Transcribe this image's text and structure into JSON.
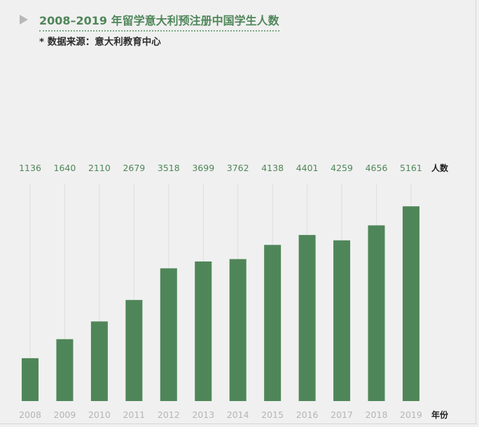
{
  "header": {
    "play_icon": "play-triangle-icon",
    "title": "2008–2019 年留学意大利预注册中国学生人数",
    "source": "* 数据来源：意大利教育中心"
  },
  "colors": {
    "bar": "#4f8659",
    "value_label": "#4f8659",
    "year_label": "#b5b5b5",
    "guide_line": "#dedede",
    "axis_title": "#1e1e1e",
    "background": "#f0f0f0"
  },
  "chart_data": {
    "type": "bar",
    "categories": [
      "2008",
      "2009",
      "2010",
      "2011",
      "2012",
      "2013",
      "2014",
      "2015",
      "2016",
      "2017",
      "2018",
      "2019"
    ],
    "values": [
      1136,
      1640,
      2110,
      2679,
      3518,
      3699,
      3762,
      4138,
      4401,
      4259,
      4656,
      5161
    ],
    "title": "2008–2019 年留学意大利预注册中国学生人数",
    "xlabel": "年份",
    "ylabel": "人数",
    "ylim": [
      0,
      5760
    ],
    "grid": false,
    "legend": "none"
  }
}
